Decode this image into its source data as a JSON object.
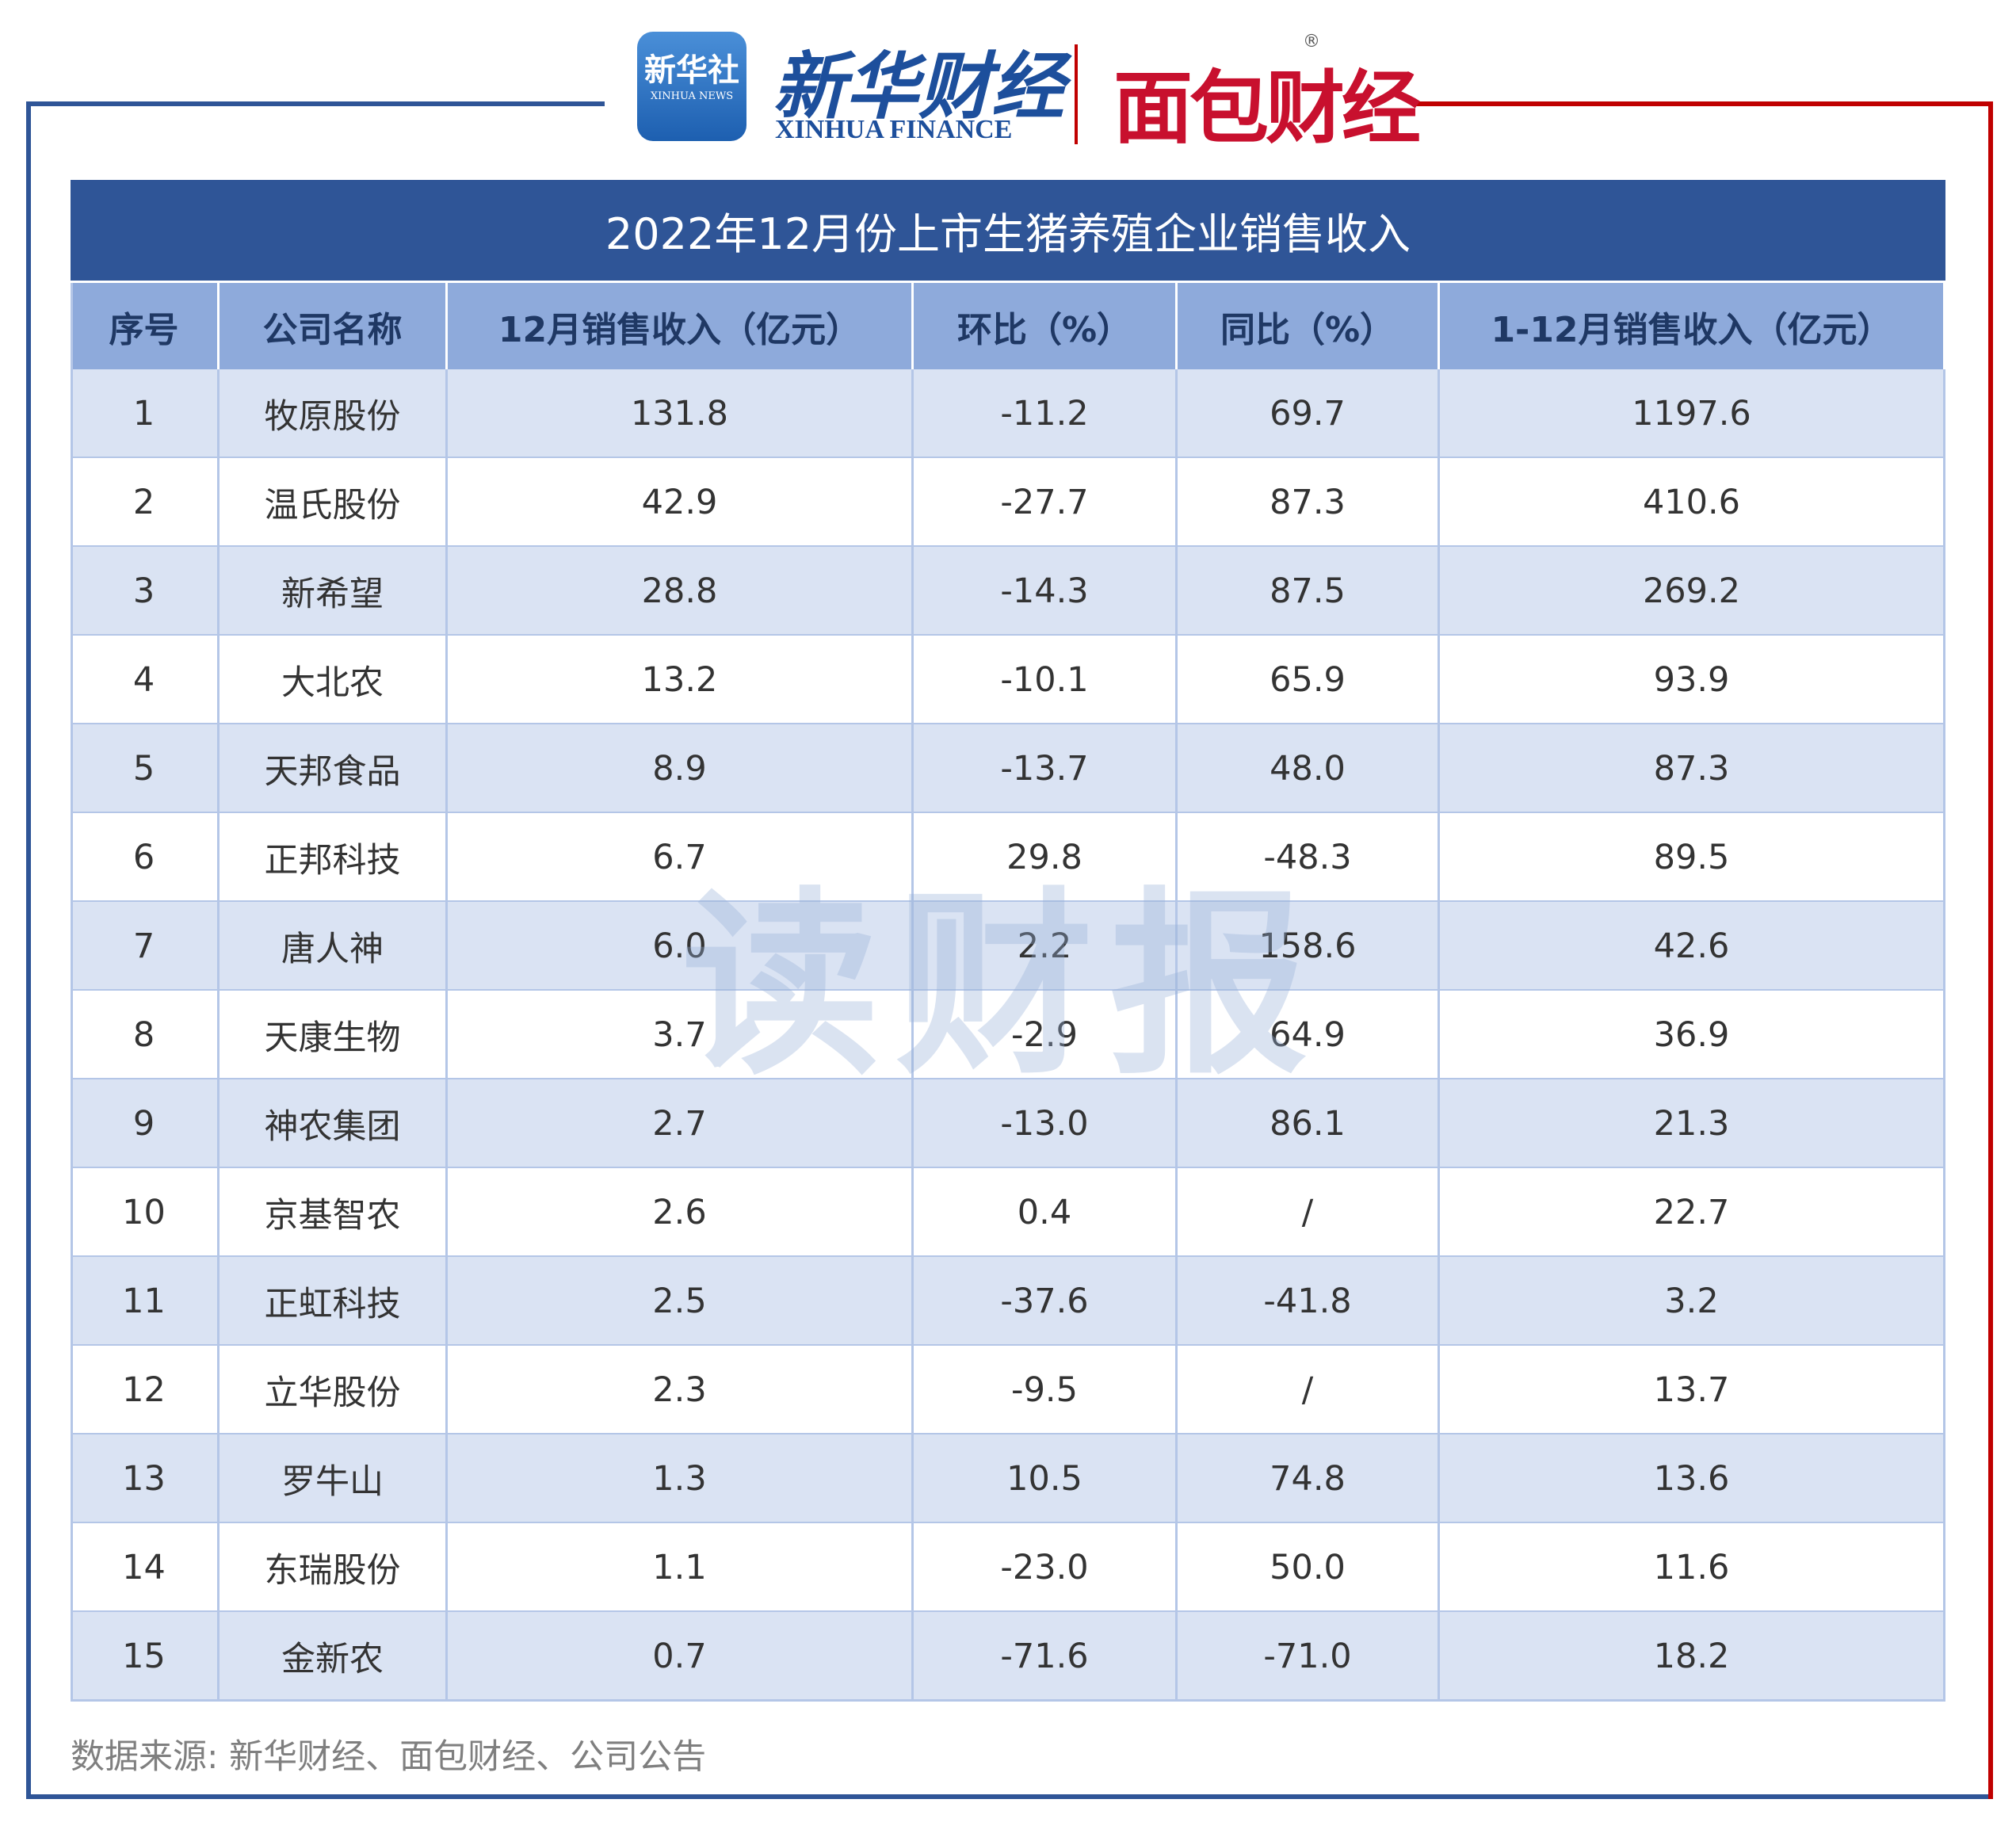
{
  "header": {
    "logo_badge": "新华社",
    "logo_badge_en": "XINHUA NEWS",
    "logo_name": "新华财经",
    "logo_name_en": "XINHUA FINANCE",
    "partner": "面包财经",
    "registered": "®"
  },
  "table": {
    "title": "2022年12月份上市生猪养殖企业销售收入",
    "columns": [
      "序号",
      "公司名称",
      "12月销售收入（亿元）",
      "环比（%）",
      "同比（%）",
      "1-12月销售收入（亿元）"
    ],
    "rows": [
      [
        "1",
        "牧原股份",
        "131.8",
        "-11.2",
        "69.7",
        "1197.6"
      ],
      [
        "2",
        "温氏股份",
        "42.9",
        "-27.7",
        "87.3",
        "410.6"
      ],
      [
        "3",
        "新希望",
        "28.8",
        "-14.3",
        "87.5",
        "269.2"
      ],
      [
        "4",
        "大北农",
        "13.2",
        "-10.1",
        "65.9",
        "93.9"
      ],
      [
        "5",
        "天邦食品",
        "8.9",
        "-13.7",
        "48.0",
        "87.3"
      ],
      [
        "6",
        "正邦科技",
        "6.7",
        "29.8",
        "-48.3",
        "89.5"
      ],
      [
        "7",
        "唐人神",
        "6.0",
        "2.2",
        "158.6",
        "42.6"
      ],
      [
        "8",
        "天康生物",
        "3.7",
        "-2.9",
        "64.9",
        "36.9"
      ],
      [
        "9",
        "神农集团",
        "2.7",
        "-13.0",
        "86.1",
        "21.3"
      ],
      [
        "10",
        "京基智农",
        "2.6",
        "0.4",
        "/",
        "22.7"
      ],
      [
        "11",
        "正虹科技",
        "2.5",
        "-37.6",
        "-41.8",
        "3.2"
      ],
      [
        "12",
        "立华股份",
        "2.3",
        "-9.5",
        "/",
        "13.7"
      ],
      [
        "13",
        "罗牛山",
        "1.3",
        "10.5",
        "74.8",
        "13.6"
      ],
      [
        "14",
        "东瑞股份",
        "1.1",
        "-23.0",
        "50.0",
        "11.6"
      ],
      [
        "15",
        "金新农",
        "0.7",
        "-71.6",
        "-71.0",
        "18.2"
      ]
    ]
  },
  "watermark": "读财报",
  "source": "数据来源: 新华财经、面包财经、公司公告"
}
